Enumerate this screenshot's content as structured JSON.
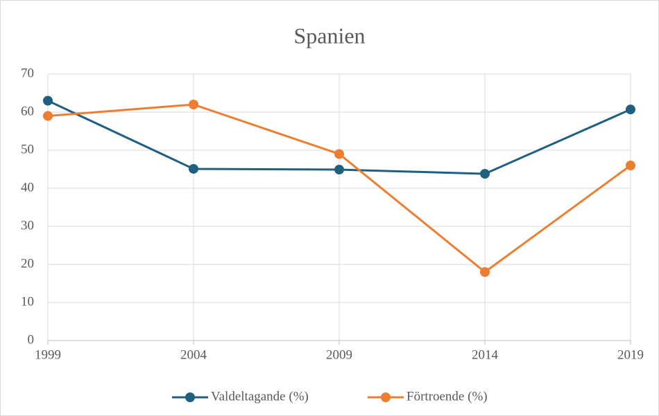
{
  "chart_data": {
    "type": "line",
    "title": "Spanien",
    "x": [
      1999,
      2004,
      2009,
      2014,
      2019
    ],
    "xlim": [
      1999,
      2019
    ],
    "xticks": [
      1999,
      2004,
      2009,
      2014,
      2019
    ],
    "ylim": [
      0,
      70
    ],
    "yticks": [
      0,
      10,
      20,
      30,
      40,
      50,
      60,
      70
    ],
    "grid": true,
    "legend": "bottom",
    "series": [
      {
        "name": "Valdeltagande (%)",
        "color": "#1f5f7f",
        "values": [
          63,
          45.1,
          44.9,
          43.8,
          60.7
        ]
      },
      {
        "name": "Förtroende (%)",
        "color": "#ed7d31",
        "values": [
          59,
          62,
          49,
          18,
          46
        ]
      }
    ]
  }
}
